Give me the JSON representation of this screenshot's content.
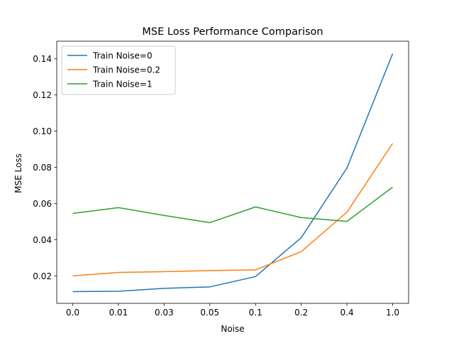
{
  "chart_data": {
    "type": "line",
    "title": "MSE Loss Performance Comparison",
    "xlabel": "Noise",
    "ylabel": "MSE Loss",
    "categories": [
      "0.0",
      "0.01",
      "0.03",
      "0.05",
      "0.1",
      "0.2",
      "0.4",
      "1.0"
    ],
    "ylim": [
      0.0048,
      0.1497
    ],
    "yticks": [
      0.02,
      0.04,
      0.06,
      0.08,
      0.1,
      0.12,
      0.14
    ],
    "ytick_labels": [
      "0.02",
      "0.04",
      "0.06",
      "0.08",
      "0.10",
      "0.12",
      "0.14"
    ],
    "grid": false,
    "legend_position": "upper-left",
    "series": [
      {
        "name": "Train Noise=0",
        "color": "#1f77b4",
        "values": [
          0.0113,
          0.0115,
          0.0131,
          0.0139,
          0.0196,
          0.0411,
          0.0796,
          0.1428
        ]
      },
      {
        "name": "Train Noise=0.2",
        "color": "#ff7f0e",
        "values": [
          0.02,
          0.0219,
          0.0223,
          0.0229,
          0.0233,
          0.0334,
          0.0552,
          0.0932
        ]
      },
      {
        "name": "Train Noise=1",
        "color": "#2ca02c",
        "values": [
          0.0545,
          0.0577,
          0.0534,
          0.0494,
          0.0581,
          0.0522,
          0.0501,
          0.069
        ]
      }
    ]
  }
}
